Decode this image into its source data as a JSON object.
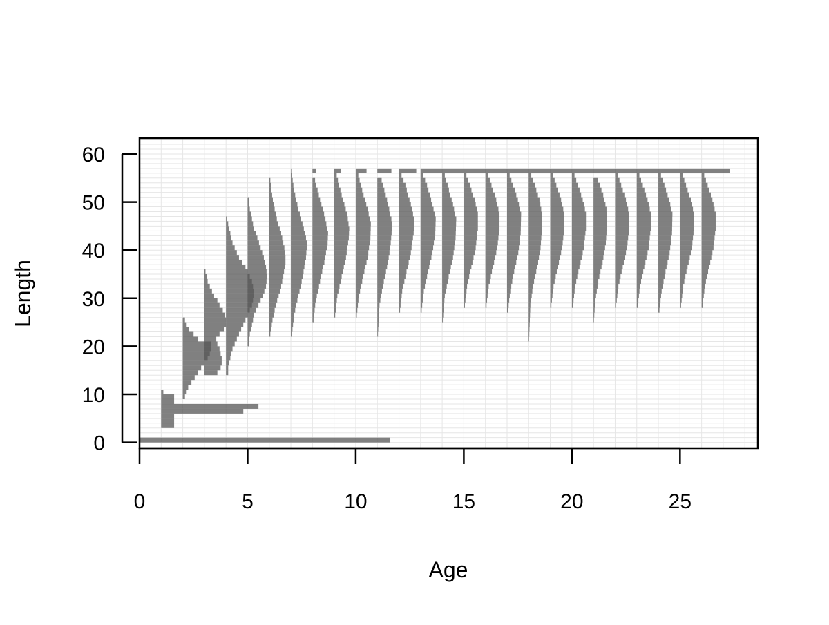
{
  "chart_data": {
    "type": "bar",
    "subtype": "horizontal histograms of length by age (length-at-age probability distributions)",
    "title": "",
    "xlabel": "Age",
    "ylabel": "Length",
    "xlim": [
      0,
      28.6
    ],
    "ylim": [
      -1.2,
      63.3
    ],
    "x_ticks": [
      0,
      5,
      10,
      15,
      20,
      25
    ],
    "y_ticks": [
      0,
      10,
      20,
      30,
      40,
      50,
      60
    ],
    "grid": true,
    "bar_color": "#555555",
    "bar_opacity": 0.75,
    "grid_color": "#e6e6e6",
    "length_bin_width": 1,
    "plus_group_length": 56,
    "ages": [
      {
        "age": 0,
        "probs": [
          [
            0,
            11.6
          ]
        ]
      },
      {
        "age": 1,
        "probs": [
          [
            3,
            0.6
          ],
          [
            4,
            0.6
          ],
          [
            5,
            0.6
          ],
          [
            6,
            3.8
          ],
          [
            7,
            4.5
          ],
          [
            8,
            0.6
          ],
          [
            9,
            0.6
          ],
          [
            10,
            0.1
          ]
        ]
      },
      {
        "age": 2,
        "probs": [
          [
            9,
            0.1
          ],
          [
            10,
            0.15
          ],
          [
            11,
            0.25
          ],
          [
            12,
            0.4
          ],
          [
            13,
            0.55
          ],
          [
            14,
            0.7
          ],
          [
            15,
            0.85
          ],
          [
            16,
            1.0
          ],
          [
            17,
            1.15
          ],
          [
            18,
            1.25
          ],
          [
            19,
            1.3
          ],
          [
            20,
            1.3
          ],
          [
            21,
            0.7
          ],
          [
            22,
            0.5
          ],
          [
            23,
            0.3
          ],
          [
            24,
            0.15
          ],
          [
            25,
            0.1
          ]
        ]
      },
      {
        "age": 3,
        "probs": [
          [
            14,
            0.6
          ],
          [
            15,
            0.75
          ],
          [
            16,
            0.8
          ],
          [
            17,
            0.8
          ],
          [
            18,
            0.75
          ],
          [
            19,
            0.7
          ],
          [
            20,
            0.6
          ],
          [
            21,
            0.55
          ],
          [
            22,
            0.7
          ],
          [
            23,
            0.9
          ],
          [
            24,
            1.0
          ],
          [
            25,
            1.0
          ],
          [
            26,
            0.95
          ],
          [
            27,
            0.85
          ],
          [
            28,
            0.7
          ],
          [
            29,
            0.6
          ],
          [
            30,
            0.45
          ],
          [
            31,
            0.35
          ],
          [
            32,
            0.25
          ],
          [
            33,
            0.15
          ],
          [
            34,
            0.1
          ],
          [
            35,
            0.05
          ]
        ]
      },
      {
        "age": 4,
        "probs": [
          [
            14,
            0.1
          ],
          [
            15,
            0.1
          ],
          [
            16,
            0.15
          ],
          [
            17,
            0.2
          ],
          [
            18,
            0.25
          ],
          [
            19,
            0.3
          ],
          [
            20,
            0.4
          ],
          [
            21,
            0.5
          ],
          [
            22,
            0.6
          ],
          [
            23,
            0.7
          ],
          [
            24,
            0.8
          ],
          [
            25,
            0.9
          ],
          [
            26,
            1.0
          ],
          [
            27,
            1.1
          ],
          [
            28,
            1.2
          ],
          [
            29,
            1.25
          ],
          [
            30,
            1.3
          ],
          [
            31,
            1.3
          ],
          [
            32,
            1.25
          ],
          [
            33,
            1.2
          ],
          [
            34,
            1.1
          ],
          [
            35,
            1.0
          ],
          [
            36,
            0.9
          ],
          [
            37,
            0.75
          ],
          [
            38,
            0.6
          ],
          [
            39,
            0.5
          ],
          [
            40,
            0.4
          ],
          [
            41,
            0.3
          ],
          [
            42,
            0.25
          ],
          [
            43,
            0.2
          ],
          [
            44,
            0.15
          ],
          [
            45,
            0.1
          ],
          [
            46,
            0.05
          ]
        ]
      },
      {
        "age": 5,
        "probs": [
          [
            20,
            0.05
          ],
          [
            22,
            0.1
          ],
          [
            24,
            0.2
          ],
          [
            26,
            0.3
          ],
          [
            28,
            0.5
          ],
          [
            30,
            0.7
          ],
          [
            32,
            0.85
          ],
          [
            34,
            0.9
          ],
          [
            36,
            0.85
          ],
          [
            38,
            0.75
          ],
          [
            40,
            0.6
          ],
          [
            42,
            0.45
          ],
          [
            44,
            0.3
          ],
          [
            46,
            0.2
          ],
          [
            48,
            0.1
          ],
          [
            50,
            0.05
          ]
        ]
      },
      {
        "age": 6,
        "probs": [
          [
            22,
            0.05
          ],
          [
            25,
            0.15
          ],
          [
            28,
            0.3
          ],
          [
            31,
            0.5
          ],
          [
            34,
            0.65
          ],
          [
            37,
            0.75
          ],
          [
            38,
            0.75
          ],
          [
            40,
            0.7
          ],
          [
            43,
            0.55
          ],
          [
            46,
            0.35
          ],
          [
            49,
            0.2
          ],
          [
            52,
            0.1
          ],
          [
            54,
            0.05
          ]
        ]
      },
      {
        "age": 7,
        "probs": [
          [
            22,
            0.05
          ],
          [
            26,
            0.15
          ],
          [
            30,
            0.35
          ],
          [
            34,
            0.55
          ],
          [
            38,
            0.7
          ],
          [
            41,
            0.75
          ],
          [
            44,
            0.6
          ],
          [
            48,
            0.35
          ],
          [
            52,
            0.15
          ],
          [
            55,
            0.05
          ],
          [
            56,
            0.02
          ]
        ]
      },
      {
        "age": 8,
        "probs": [
          [
            25,
            0.05
          ],
          [
            29,
            0.15
          ],
          [
            33,
            0.35
          ],
          [
            37,
            0.55
          ],
          [
            41,
            0.7
          ],
          [
            43,
            0.72
          ],
          [
            46,
            0.6
          ],
          [
            50,
            0.35
          ],
          [
            54,
            0.12
          ],
          [
            56,
            0.15
          ]
        ]
      },
      {
        "age": 9,
        "probs": [
          [
            26,
            0.05
          ],
          [
            30,
            0.15
          ],
          [
            34,
            0.35
          ],
          [
            38,
            0.55
          ],
          [
            42,
            0.68
          ],
          [
            44,
            0.7
          ],
          [
            47,
            0.6
          ],
          [
            51,
            0.35
          ],
          [
            55,
            0.12
          ],
          [
            56,
            0.3
          ]
        ]
      },
      {
        "age": 10,
        "probs": [
          [
            26,
            0.05
          ],
          [
            30,
            0.15
          ],
          [
            34,
            0.35
          ],
          [
            38,
            0.55
          ],
          [
            42,
            0.68
          ],
          [
            45,
            0.7
          ],
          [
            48,
            0.55
          ],
          [
            52,
            0.3
          ],
          [
            55,
            0.12
          ],
          [
            56,
            0.5
          ]
        ]
      },
      {
        "age": 11,
        "probs": [
          [
            22,
            0.03
          ],
          [
            28,
            0.1
          ],
          [
            32,
            0.25
          ],
          [
            36,
            0.45
          ],
          [
            40,
            0.6
          ],
          [
            44,
            0.68
          ],
          [
            46,
            0.65
          ],
          [
            50,
            0.45
          ],
          [
            54,
            0.2
          ],
          [
            56,
            0.65
          ]
        ]
      },
      {
        "age": 12,
        "probs": [
          [
            27,
            0.05
          ],
          [
            31,
            0.15
          ],
          [
            35,
            0.35
          ],
          [
            39,
            0.55
          ],
          [
            43,
            0.68
          ],
          [
            46,
            0.7
          ],
          [
            49,
            0.55
          ],
          [
            53,
            0.3
          ],
          [
            55,
            0.12
          ],
          [
            56,
            0.8
          ]
        ]
      },
      {
        "age": 13,
        "probs": [
          [
            27,
            0.05
          ],
          [
            31,
            0.15
          ],
          [
            35,
            0.35
          ],
          [
            39,
            0.55
          ],
          [
            43,
            0.68
          ],
          [
            46,
            0.7
          ],
          [
            49,
            0.55
          ],
          [
            53,
            0.3
          ],
          [
            55,
            0.12
          ],
          [
            56,
            14.3
          ]
        ]
      },
      {
        "age": 14,
        "probs": [
          [
            25,
            0.03
          ],
          [
            30,
            0.12
          ],
          [
            34,
            0.3
          ],
          [
            38,
            0.5
          ],
          [
            42,
            0.62
          ],
          [
            46,
            0.65
          ],
          [
            49,
            0.5
          ],
          [
            53,
            0.25
          ],
          [
            55,
            0.12
          ]
        ]
      },
      {
        "age": 15,
        "probs": [
          [
            28,
            0.05
          ],
          [
            32,
            0.15
          ],
          [
            36,
            0.35
          ],
          [
            40,
            0.55
          ],
          [
            44,
            0.65
          ],
          [
            47,
            0.65
          ],
          [
            50,
            0.5
          ],
          [
            53,
            0.28
          ],
          [
            55,
            0.12
          ]
        ]
      },
      {
        "age": 16,
        "probs": [
          [
            28,
            0.05
          ],
          [
            32,
            0.15
          ],
          [
            36,
            0.35
          ],
          [
            40,
            0.55
          ],
          [
            44,
            0.65
          ],
          [
            47,
            0.65
          ],
          [
            50,
            0.5
          ],
          [
            53,
            0.28
          ],
          [
            55,
            0.12
          ]
        ]
      },
      {
        "age": 17,
        "probs": [
          [
            27,
            0.05
          ],
          [
            31,
            0.15
          ],
          [
            35,
            0.33
          ],
          [
            39,
            0.52
          ],
          [
            43,
            0.63
          ],
          [
            47,
            0.65
          ],
          [
            50,
            0.5
          ],
          [
            53,
            0.28
          ],
          [
            55,
            0.12
          ]
        ]
      },
      {
        "age": 18,
        "probs": [
          [
            21,
            0.02
          ],
          [
            28,
            0.08
          ],
          [
            32,
            0.2
          ],
          [
            36,
            0.4
          ],
          [
            40,
            0.55
          ],
          [
            44,
            0.62
          ],
          [
            47,
            0.62
          ],
          [
            50,
            0.5
          ],
          [
            53,
            0.28
          ],
          [
            55,
            0.12
          ]
        ]
      },
      {
        "age": 19,
        "probs": [
          [
            28,
            0.05
          ],
          [
            32,
            0.15
          ],
          [
            36,
            0.35
          ],
          [
            40,
            0.55
          ],
          [
            44,
            0.65
          ],
          [
            47,
            0.65
          ],
          [
            50,
            0.5
          ],
          [
            53,
            0.28
          ],
          [
            55,
            0.12
          ]
        ]
      },
      {
        "age": 20,
        "probs": [
          [
            28,
            0.05
          ],
          [
            32,
            0.15
          ],
          [
            36,
            0.35
          ],
          [
            40,
            0.55
          ],
          [
            44,
            0.65
          ],
          [
            47,
            0.65
          ],
          [
            50,
            0.5
          ],
          [
            53,
            0.28
          ],
          [
            55,
            0.12
          ]
        ]
      },
      {
        "age": 21,
        "probs": [
          [
            25,
            0.02
          ],
          [
            29,
            0.08
          ],
          [
            33,
            0.22
          ],
          [
            37,
            0.42
          ],
          [
            41,
            0.57
          ],
          [
            45,
            0.63
          ],
          [
            48,
            0.6
          ],
          [
            51,
            0.45
          ],
          [
            54,
            0.2
          ]
        ]
      },
      {
        "age": 22,
        "probs": [
          [
            28,
            0.05
          ],
          [
            32,
            0.15
          ],
          [
            36,
            0.35
          ],
          [
            40,
            0.55
          ],
          [
            44,
            0.65
          ],
          [
            47,
            0.65
          ],
          [
            50,
            0.5
          ],
          [
            53,
            0.28
          ],
          [
            55,
            0.12
          ]
        ]
      },
      {
        "age": 23,
        "probs": [
          [
            28,
            0.05
          ],
          [
            32,
            0.15
          ],
          [
            36,
            0.35
          ],
          [
            40,
            0.55
          ],
          [
            44,
            0.65
          ],
          [
            47,
            0.65
          ],
          [
            50,
            0.5
          ],
          [
            53,
            0.28
          ],
          [
            55,
            0.12
          ]
        ]
      },
      {
        "age": 24,
        "probs": [
          [
            27,
            0.05
          ],
          [
            31,
            0.15
          ],
          [
            35,
            0.33
          ],
          [
            39,
            0.52
          ],
          [
            43,
            0.63
          ],
          [
            47,
            0.65
          ],
          [
            50,
            0.5
          ],
          [
            53,
            0.28
          ],
          [
            55,
            0.12
          ]
        ]
      },
      {
        "age": 25,
        "probs": [
          [
            28,
            0.05
          ],
          [
            32,
            0.15
          ],
          [
            36,
            0.35
          ],
          [
            40,
            0.55
          ],
          [
            44,
            0.65
          ],
          [
            47,
            0.65
          ],
          [
            50,
            0.5
          ],
          [
            53,
            0.28
          ],
          [
            55,
            0.12
          ]
        ]
      },
      {
        "age": 26,
        "probs": [
          [
            28,
            0.05
          ],
          [
            32,
            0.15
          ],
          [
            36,
            0.35
          ],
          [
            40,
            0.55
          ],
          [
            44,
            0.65
          ],
          [
            47,
            0.65
          ],
          [
            50,
            0.5
          ],
          [
            53,
            0.28
          ],
          [
            55,
            0.12
          ]
        ]
      }
    ]
  }
}
